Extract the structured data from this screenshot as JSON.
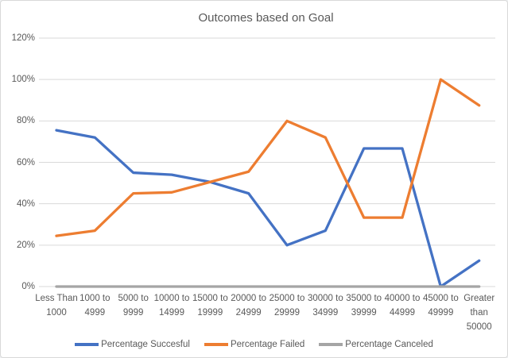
{
  "chart_data": {
    "type": "line",
    "title": "Outcomes based on Goal",
    "categories": [
      [
        "Less Than",
        "1000"
      ],
      [
        "1000 to",
        "4999"
      ],
      [
        "5000 to",
        "9999"
      ],
      [
        "10000 to",
        "14999"
      ],
      [
        "15000 to",
        "19999"
      ],
      [
        "20000 to",
        "24999"
      ],
      [
        "25000 to",
        "29999"
      ],
      [
        "30000 to",
        "34999"
      ],
      [
        "35000 to",
        "39999"
      ],
      [
        "40000 to",
        "44999"
      ],
      [
        "45000 to",
        "49999"
      ],
      [
        "Greater",
        "than",
        "50000"
      ]
    ],
    "series": [
      {
        "name": "Percentage Succesful",
        "color": "#4472C4",
        "values": [
          75.5,
          72,
          55,
          54,
          50.5,
          45,
          20,
          27,
          66.7,
          66.7,
          0,
          12.5
        ]
      },
      {
        "name": "Percentage Failed",
        "color": "#ED7D31",
        "values": [
          24.5,
          27,
          45,
          45.5,
          50.5,
          55.5,
          80,
          72,
          33.3,
          33.3,
          100,
          87.5
        ]
      },
      {
        "name": "Percentage Canceled",
        "color": "#A5A5A5",
        "values": [
          0,
          0,
          0,
          0,
          0,
          0,
          0,
          0,
          0,
          0,
          0,
          0
        ]
      }
    ],
    "y_ticks": [
      {
        "label": "0%",
        "value": 0
      },
      {
        "label": "20%",
        "value": 20
      },
      {
        "label": "40%",
        "value": 40
      },
      {
        "label": "60%",
        "value": 60
      },
      {
        "label": "80%",
        "value": 80
      },
      {
        "label": "100%",
        "value": 100
      },
      {
        "label": "120%",
        "value": 120
      }
    ],
    "ylim": [
      0,
      120
    ],
    "grid": true,
    "legend_position": "bottom",
    "colors": {
      "gridline": "#d9d9d9",
      "axis_line": "#d9d9d9",
      "text": "#595959",
      "background": "#ffffff",
      "border": "#d9d9d9"
    }
  }
}
